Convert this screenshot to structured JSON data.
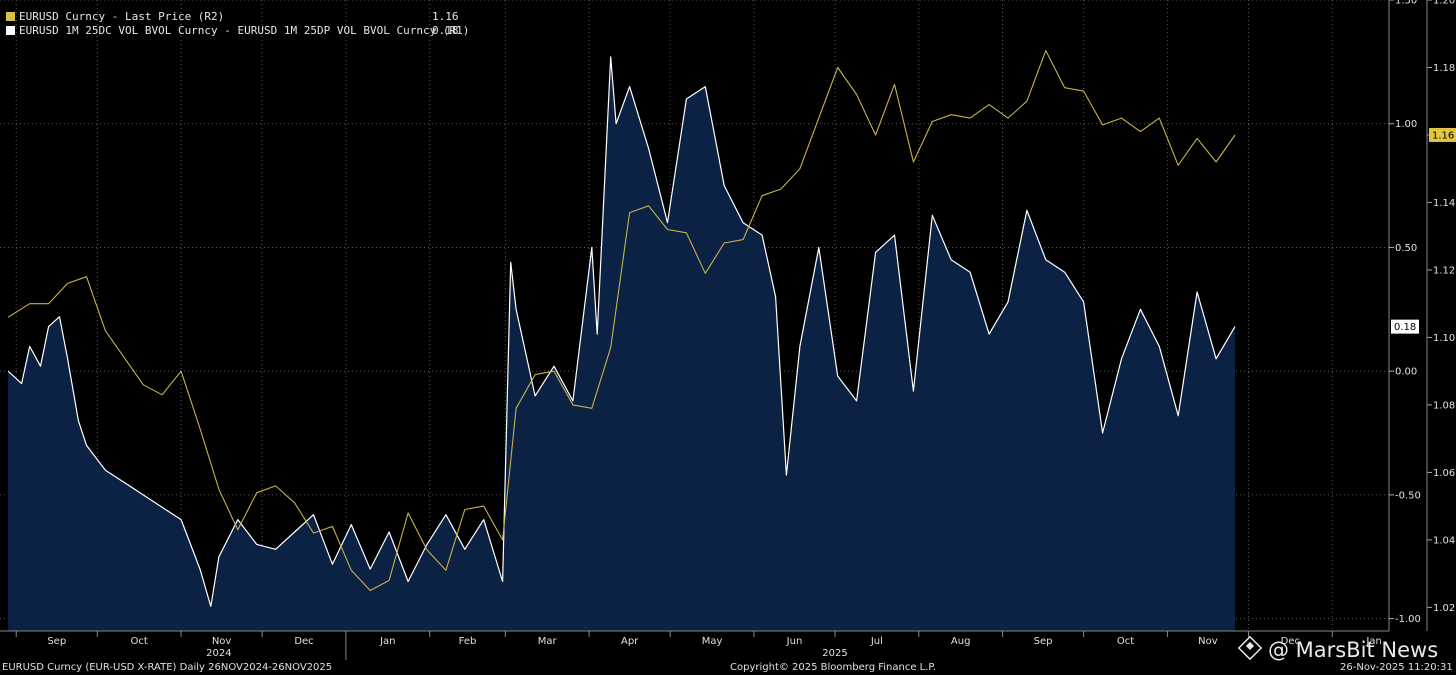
{
  "legend": {
    "series1_label": "EURUSD Curncy - Last Price (R2)",
    "series1_value": "1.16",
    "series2_label": "EURUSD 1M 25DC VOL BVOL Curncy - EURUSD 1M 25DP VOL BVOL Curncy (R1)",
    "series2_value": "0.18"
  },
  "footer": {
    "left": "EURUSD Curncy (EUR-USD X-RATE) Daily 26NOV2024-26NOV2025",
    "center": "Copyright© 2025 Bloomberg Finance L.P.",
    "right": "26-Nov-2025 11:20:31"
  },
  "watermark": {
    "text": "@ MarsBit News"
  },
  "colors": {
    "background": "#000000",
    "eurusd": "#c9b24a",
    "rr_line": "#ffffff",
    "rr_fill": "#0b2244",
    "grid": "#555555"
  },
  "chart_data": {
    "type": "line",
    "x_months": [
      "Sep",
      "Oct",
      "Nov",
      "Dec",
      "Jan",
      "Feb",
      "Mar",
      "Apr",
      "May",
      "Jun",
      "Jul",
      "Aug",
      "Sep",
      "Oct",
      "Nov",
      "Dec",
      "Jan"
    ],
    "x_years": [
      "2024",
      "2025"
    ],
    "axes": {
      "R1": {
        "range": [
          -1.05,
          1.5
        ],
        "ticks": [
          "1.50",
          "1.00",
          "0.50",
          "0.00",
          "-0.50",
          "-1.00"
        ]
      },
      "R2": {
        "range": [
          1.013,
          1.2
        ],
        "ticks": [
          "1.20",
          "1.18",
          "1.16",
          "1.14",
          "1.12",
          "1.10",
          "1.08",
          "1.06",
          "1.04",
          "1.02"
        ]
      }
    },
    "last_labels": {
      "eurusd": "1.16",
      "risk_reversal": "0.18"
    },
    "series": [
      {
        "name": "EURUSD Curncy - Last Price (R2)",
        "axis": "R2",
        "style": "line",
        "points": [
          [
            "2024-08-29",
            1.106
          ],
          [
            "2024-09-06",
            1.11
          ],
          [
            "2024-09-13",
            1.11
          ],
          [
            "2024-09-20",
            1.116
          ],
          [
            "2024-09-27",
            1.118
          ],
          [
            "2024-10-04",
            1.102
          ],
          [
            "2024-10-11",
            1.094
          ],
          [
            "2024-10-18",
            1.086
          ],
          [
            "2024-10-25",
            1.083
          ],
          [
            "2024-11-01",
            1.09
          ],
          [
            "2024-11-08",
            1.073
          ],
          [
            "2024-11-15",
            1.055
          ],
          [
            "2024-11-22",
            1.043
          ],
          [
            "2024-11-29",
            1.054
          ],
          [
            "2024-12-06",
            1.056
          ],
          [
            "2024-12-13",
            1.051
          ],
          [
            "2024-12-20",
            1.042
          ],
          [
            "2024-12-27",
            1.044
          ],
          [
            "2025-01-03",
            1.031
          ],
          [
            "2025-01-10",
            1.025
          ],
          [
            "2025-01-17",
            1.028
          ],
          [
            "2025-01-24",
            1.048
          ],
          [
            "2025-01-31",
            1.037
          ],
          [
            "2025-02-07",
            1.031
          ],
          [
            "2025-02-14",
            1.049
          ],
          [
            "2025-02-21",
            1.05
          ],
          [
            "2025-02-28",
            1.04
          ],
          [
            "2025-03-05",
            1.079
          ],
          [
            "2025-03-12",
            1.089
          ],
          [
            "2025-03-19",
            1.09
          ],
          [
            "2025-03-26",
            1.08
          ],
          [
            "2025-04-02",
            1.079
          ],
          [
            "2025-04-09",
            1.097
          ],
          [
            "2025-04-16",
            1.137
          ],
          [
            "2025-04-23",
            1.139
          ],
          [
            "2025-04-30",
            1.132
          ],
          [
            "2025-05-07",
            1.131
          ],
          [
            "2025-05-14",
            1.119
          ],
          [
            "2025-05-21",
            1.128
          ],
          [
            "2025-05-28",
            1.129
          ],
          [
            "2025-06-04",
            1.142
          ],
          [
            "2025-06-11",
            1.144
          ],
          [
            "2025-06-18",
            1.15
          ],
          [
            "2025-06-25",
            1.165
          ],
          [
            "2025-07-02",
            1.18
          ],
          [
            "2025-07-09",
            1.172
          ],
          [
            "2025-07-16",
            1.16
          ],
          [
            "2025-07-23",
            1.175
          ],
          [
            "2025-07-30",
            1.152
          ],
          [
            "2025-08-06",
            1.164
          ],
          [
            "2025-08-13",
            1.166
          ],
          [
            "2025-08-20",
            1.165
          ],
          [
            "2025-08-27",
            1.169
          ],
          [
            "2025-09-03",
            1.165
          ],
          [
            "2025-09-10",
            1.17
          ],
          [
            "2025-09-17",
            1.185
          ],
          [
            "2025-09-24",
            1.174
          ],
          [
            "2025-10-01",
            1.173
          ],
          [
            "2025-10-08",
            1.163
          ],
          [
            "2025-10-15",
            1.165
          ],
          [
            "2025-10-22",
            1.161
          ],
          [
            "2025-10-29",
            1.165
          ],
          [
            "2025-11-05",
            1.151
          ],
          [
            "2025-11-12",
            1.159
          ],
          [
            "2025-11-19",
            1.152
          ],
          [
            "2025-11-26",
            1.16
          ]
        ]
      },
      {
        "name": "EURUSD 1M 25DC VOL BVOL Curncy - EURUSD 1M 25DP VOL BVOL Curncy (R1)",
        "axis": "R1",
        "style": "area",
        "points": [
          [
            "2024-08-29",
            0.0
          ],
          [
            "2024-09-03",
            -0.05
          ],
          [
            "2024-09-06",
            0.1
          ],
          [
            "2024-09-10",
            0.02
          ],
          [
            "2024-09-13",
            0.18
          ],
          [
            "2024-09-17",
            0.22
          ],
          [
            "2024-09-20",
            0.05
          ],
          [
            "2024-09-24",
            -0.2
          ],
          [
            "2024-09-27",
            -0.3
          ],
          [
            "2024-10-04",
            -0.4
          ],
          [
            "2024-10-11",
            -0.45
          ],
          [
            "2024-10-18",
            -0.5
          ],
          [
            "2024-10-25",
            -0.55
          ],
          [
            "2024-11-01",
            -0.6
          ],
          [
            "2024-11-08",
            -0.8
          ],
          [
            "2024-11-12",
            -0.95
          ],
          [
            "2024-11-15",
            -0.75
          ],
          [
            "2024-11-22",
            -0.6
          ],
          [
            "2024-11-29",
            -0.7
          ],
          [
            "2024-12-06",
            -0.72
          ],
          [
            "2024-12-13",
            -0.65
          ],
          [
            "2024-12-20",
            -0.58
          ],
          [
            "2024-12-27",
            -0.78
          ],
          [
            "2025-01-03",
            -0.62
          ],
          [
            "2025-01-10",
            -0.8
          ],
          [
            "2025-01-17",
            -0.65
          ],
          [
            "2025-01-24",
            -0.85
          ],
          [
            "2025-01-31",
            -0.7
          ],
          [
            "2025-02-07",
            -0.58
          ],
          [
            "2025-02-14",
            -0.72
          ],
          [
            "2025-02-21",
            -0.6
          ],
          [
            "2025-02-28",
            -0.85
          ],
          [
            "2025-03-03",
            0.44
          ],
          [
            "2025-03-05",
            0.25
          ],
          [
            "2025-03-12",
            -0.1
          ],
          [
            "2025-03-19",
            0.02
          ],
          [
            "2025-03-26",
            -0.12
          ],
          [
            "2025-04-02",
            0.5
          ],
          [
            "2025-04-04",
            0.15
          ],
          [
            "2025-04-09",
            1.27
          ],
          [
            "2025-04-11",
            1.0
          ],
          [
            "2025-04-16",
            1.15
          ],
          [
            "2025-04-23",
            0.9
          ],
          [
            "2025-04-30",
            0.6
          ],
          [
            "2025-05-07",
            1.1
          ],
          [
            "2025-05-14",
            1.15
          ],
          [
            "2025-05-21",
            0.75
          ],
          [
            "2025-05-28",
            0.6
          ],
          [
            "2025-06-04",
            0.55
          ],
          [
            "2025-06-09",
            0.3
          ],
          [
            "2025-06-13",
            -0.42
          ],
          [
            "2025-06-18",
            0.1
          ],
          [
            "2025-06-25",
            0.5
          ],
          [
            "2025-07-02",
            -0.02
          ],
          [
            "2025-07-09",
            -0.12
          ],
          [
            "2025-07-16",
            0.48
          ],
          [
            "2025-07-23",
            0.55
          ],
          [
            "2025-07-30",
            -0.08
          ],
          [
            "2025-08-06",
            0.63
          ],
          [
            "2025-08-13",
            0.45
          ],
          [
            "2025-08-20",
            0.4
          ],
          [
            "2025-08-27",
            0.15
          ],
          [
            "2025-09-03",
            0.28
          ],
          [
            "2025-09-10",
            0.65
          ],
          [
            "2025-09-17",
            0.45
          ],
          [
            "2025-09-24",
            0.4
          ],
          [
            "2025-10-01",
            0.28
          ],
          [
            "2025-10-08",
            -0.25
          ],
          [
            "2025-10-15",
            0.05
          ],
          [
            "2025-10-22",
            0.25
          ],
          [
            "2025-10-29",
            0.1
          ],
          [
            "2025-11-05",
            -0.18
          ],
          [
            "2025-11-12",
            0.32
          ],
          [
            "2025-11-19",
            0.05
          ],
          [
            "2025-11-26",
            0.18
          ]
        ]
      }
    ]
  }
}
